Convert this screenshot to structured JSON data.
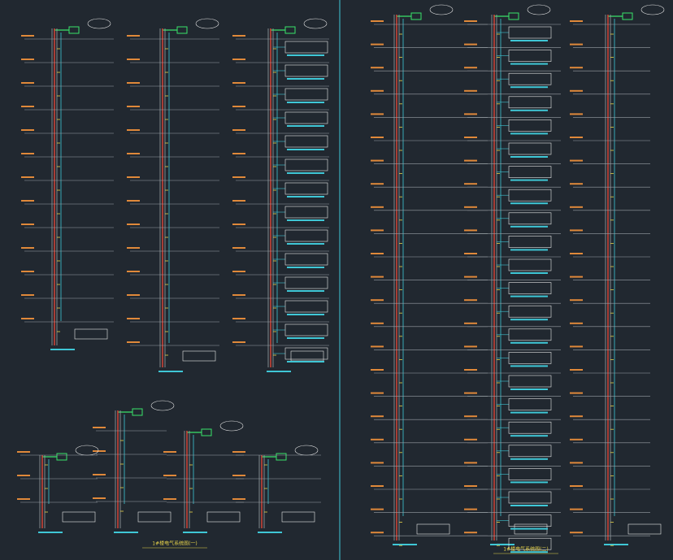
{
  "captions": {
    "left": "1#楼电气系统图(一)",
    "right": "1#楼电气系统图(二)"
  }
}
